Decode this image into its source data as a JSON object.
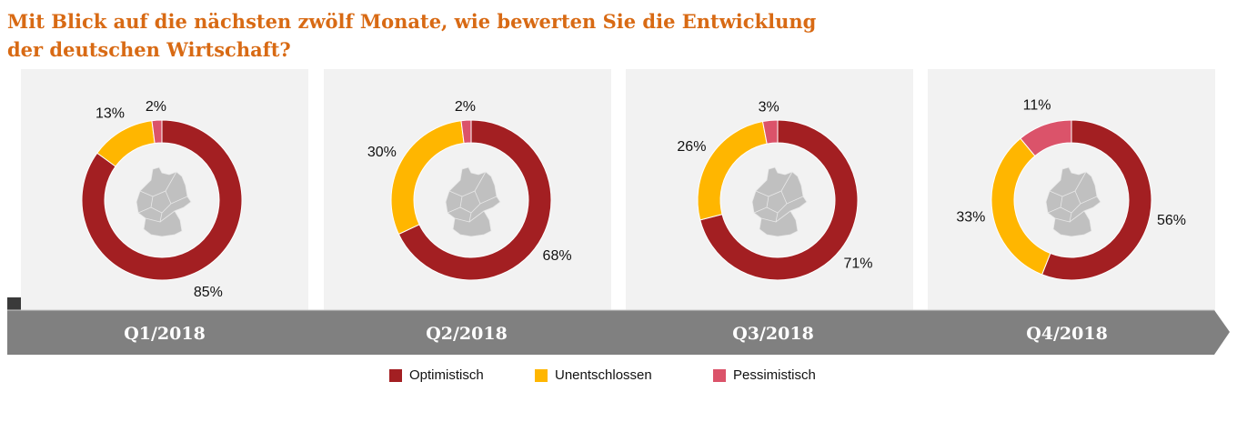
{
  "title_line1": "Mit Blick auf die nächsten zwölf Monate, wie bewerten Sie die Entwicklung",
  "title_line2": "der deutschen Wirtschaft?",
  "chart_data": {
    "type": "pie",
    "subtype": "donut",
    "title": "Mit Blick auf die nächsten zwölf Monate, wie bewerten Sie die Entwicklung der deutschen Wirtschaft?",
    "categories": [
      "Optimistisch",
      "Unentschlossen",
      "Pessimistisch"
    ],
    "colors": [
      "#a31f22",
      "#ffb600",
      "#db536a"
    ],
    "charts": [
      {
        "period": "Q1/2018",
        "values": [
          85,
          13,
          2
        ],
        "labels": [
          "85%",
          "13%",
          "2%"
        ]
      },
      {
        "period": "Q2/2018",
        "values": [
          68,
          30,
          2
        ],
        "labels": [
          "68%",
          "30%",
          "2%"
        ]
      },
      {
        "period": "Q3/2018",
        "values": [
          71,
          26,
          3
        ],
        "labels": [
          "71%",
          "26%",
          "3%"
        ]
      },
      {
        "period": "Q4/2018",
        "values": [
          56,
          33,
          11
        ],
        "labels": [
          "56%",
          "33%",
          "11%"
        ]
      }
    ],
    "legend_placement": "bottom",
    "center_icon": "germany-map-icon"
  },
  "colors": {
    "panel": "#f2f2f2",
    "timeline": "#808080",
    "title": "#d86a14",
    "map": "#c0c0c0"
  }
}
